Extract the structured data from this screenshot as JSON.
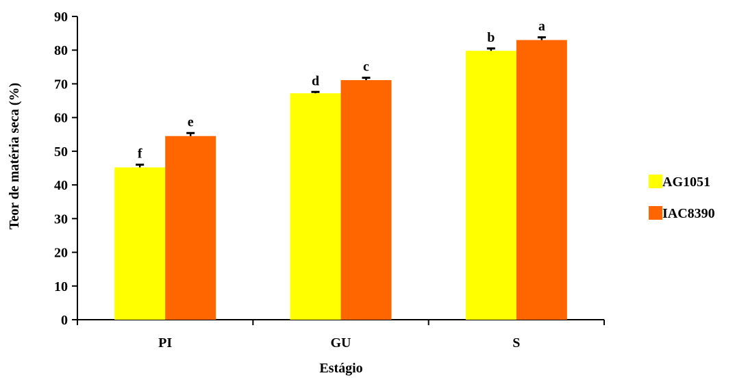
{
  "chart_data": {
    "type": "bar",
    "categories": [
      "PI",
      "GU",
      "S"
    ],
    "xlabel": "Estágio",
    "ylabel": "Teor de matéria seca (%)",
    "ylim": [
      0,
      90
    ],
    "yticks": [
      0,
      10,
      20,
      30,
      40,
      50,
      60,
      70,
      80,
      90
    ],
    "grid": false,
    "legend_position": "right",
    "series": [
      {
        "name": "AG1051",
        "color": "#ffff00",
        "values": [
          45.2,
          67.2,
          79.8
        ],
        "errors": [
          0.8,
          0.4,
          0.7
        ],
        "letters": [
          "f",
          "d",
          "b"
        ]
      },
      {
        "name": "IAC8390",
        "color": "#ff6600",
        "values": [
          54.5,
          71.1,
          83.0
        ],
        "errors": [
          0.9,
          0.7,
          0.8
        ],
        "letters": [
          "e",
          "c",
          "a"
        ]
      }
    ]
  }
}
